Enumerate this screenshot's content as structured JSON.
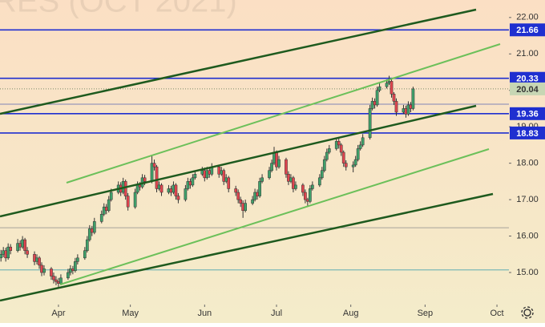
{
  "chart_data": {
    "type": "candlestick",
    "title": "RES (OCT 2021)",
    "xlim": [
      -24.4,
      188.0
    ],
    "xticks": [
      {
        "value": 0,
        "label": "Apr"
      },
      {
        "value": 30,
        "label": "May"
      },
      {
        "value": 61,
        "label": "Jun"
      },
      {
        "value": 91,
        "label": "Jul"
      },
      {
        "value": 122,
        "label": "Aug"
      },
      {
        "value": 153,
        "label": "Sep"
      },
      {
        "value": 183,
        "label": "Oct"
      }
    ],
    "ylim": [
      14.12,
      22.48
    ],
    "yticks": [
      {
        "value": 15,
        "label": "15.00"
      },
      {
        "value": 16,
        "label": "16.00"
      },
      {
        "value": 17,
        "label": "17.00"
      },
      {
        "value": 18,
        "label": "18.00"
      },
      {
        "value": 19,
        "label": "19.00"
      },
      {
        "value": 20,
        "label": "20.00"
      },
      {
        "value": 21,
        "label": "21.00"
      },
      {
        "value": 22,
        "label": "22.00"
      }
    ],
    "levels": [
      21.66,
      20.33,
      19.36,
      18.83
    ],
    "level_color": "#1f2fd0",
    "last_price": 20.04,
    "last_price_color": "#c7d6b4",
    "guide_lines": [
      {
        "value": 19.62,
        "color": "#5866b0"
      },
      {
        "value": 16.23,
        "color": "#8c8c8c"
      },
      {
        "value": 15.07,
        "color": "#4aa3b0"
      }
    ],
    "up_color": "#3fa06a",
    "down_color": "#e0454f",
    "series": [
      {
        "x": [
          -24,
          -23,
          -22,
          -21,
          -20,
          -17,
          -16,
          -15,
          -14,
          -13,
          -10,
          -9,
          -8,
          -7,
          -6,
          -3,
          -2,
          -1,
          0,
          1,
          4,
          5,
          6,
          7,
          8,
          11,
          12,
          13,
          14,
          15,
          18,
          19,
          20,
          21,
          22,
          25,
          26,
          27,
          28,
          29,
          32,
          33,
          34,
          35,
          36,
          39,
          40,
          41,
          42,
          43,
          46,
          47,
          48,
          49,
          50,
          53,
          54,
          55,
          56,
          57,
          60,
          61,
          62,
          63,
          64,
          67,
          68,
          69,
          70,
          71,
          74,
          75,
          76,
          77,
          78,
          81,
          82,
          83,
          84,
          85,
          88,
          89,
          90,
          91,
          92,
          95,
          96,
          97,
          98,
          99,
          102,
          103,
          104,
          105,
          106,
          109,
          110,
          111,
          112,
          113,
          116,
          117,
          118,
          119,
          120,
          123,
          124,
          125,
          126,
          127,
          130,
          131,
          132,
          133,
          134,
          137,
          138,
          139,
          140,
          141,
          144,
          145,
          146,
          147,
          148
        ],
        "ohlc": [
          [
            15.4,
            15.62,
            15.3,
            15.5
          ],
          [
            15.5,
            15.7,
            15.42,
            15.6
          ],
          [
            15.6,
            15.68,
            15.3,
            15.4
          ],
          [
            15.4,
            15.8,
            15.35,
            15.7
          ],
          [
            15.7,
            15.78,
            15.5,
            15.6
          ],
          [
            15.6,
            15.92,
            15.55,
            15.8
          ],
          [
            15.8,
            15.88,
            15.6,
            15.7
          ],
          [
            15.7,
            16.0,
            15.65,
            15.9
          ],
          [
            15.9,
            15.95,
            15.5,
            15.6
          ],
          [
            15.6,
            15.7,
            15.4,
            15.5
          ],
          [
            15.5,
            15.58,
            15.2,
            15.3
          ],
          [
            15.3,
            15.5,
            15.22,
            15.4
          ],
          [
            15.4,
            15.45,
            15.1,
            15.2
          ],
          [
            15.2,
            15.28,
            14.9,
            15.0
          ],
          [
            15.0,
            15.2,
            14.92,
            15.1
          ],
          [
            15.1,
            15.15,
            14.8,
            14.9
          ],
          [
            14.9,
            15.0,
            14.7,
            14.8
          ],
          [
            14.8,
            14.9,
            14.65,
            14.75
          ],
          [
            14.75,
            14.85,
            14.6,
            14.7
          ],
          [
            14.7,
            14.95,
            14.65,
            14.85
          ],
          [
            14.85,
            15.1,
            14.8,
            15.0
          ],
          [
            15.0,
            15.2,
            14.92,
            15.1
          ],
          [
            15.1,
            15.18,
            14.95,
            15.05
          ],
          [
            15.05,
            15.4,
            15.0,
            15.3
          ],
          [
            15.3,
            15.5,
            15.22,
            15.4
          ],
          [
            15.4,
            15.7,
            15.35,
            15.6
          ],
          [
            15.6,
            16.0,
            15.55,
            15.9
          ],
          [
            15.9,
            16.3,
            15.85,
            16.2
          ],
          [
            16.2,
            16.28,
            16.0,
            16.1
          ],
          [
            16.1,
            16.5,
            16.05,
            16.4
          ],
          [
            16.4,
            16.7,
            16.35,
            16.6
          ],
          [
            16.6,
            16.9,
            16.55,
            16.8
          ],
          [
            16.8,
            16.88,
            16.6,
            16.7
          ],
          [
            16.7,
            17.1,
            16.65,
            17.0
          ],
          [
            17.0,
            17.3,
            16.95,
            17.2
          ],
          [
            17.2,
            17.5,
            17.15,
            17.4
          ],
          [
            17.4,
            17.48,
            17.1,
            17.2
          ],
          [
            17.2,
            17.6,
            17.15,
            17.5
          ],
          [
            17.5,
            17.55,
            17.0,
            17.1
          ],
          [
            17.1,
            17.18,
            16.7,
            16.8
          ],
          [
            16.8,
            17.3,
            16.75,
            17.2
          ],
          [
            17.2,
            17.5,
            17.15,
            17.4
          ],
          [
            17.4,
            17.48,
            17.25,
            17.35
          ],
          [
            17.35,
            17.7,
            17.3,
            17.6
          ],
          [
            17.6,
            17.68,
            17.4,
            17.5
          ],
          [
            17.5,
            18.2,
            17.45,
            18.0
          ],
          [
            18.0,
            18.1,
            17.8,
            17.9
          ],
          [
            17.9,
            17.95,
            17.2,
            17.3
          ],
          [
            17.3,
            17.5,
            17.25,
            17.4
          ],
          [
            17.4,
            17.45,
            17.1,
            17.2
          ],
          [
            17.2,
            17.4,
            17.15,
            17.3
          ],
          [
            17.3,
            17.38,
            17.1,
            17.2
          ],
          [
            17.2,
            17.5,
            17.15,
            17.4
          ],
          [
            17.4,
            17.45,
            17.0,
            17.1
          ],
          [
            17.1,
            17.18,
            16.9,
            17.0
          ],
          [
            17.0,
            17.4,
            16.95,
            17.3
          ],
          [
            17.3,
            17.6,
            17.25,
            17.5
          ],
          [
            17.5,
            17.58,
            17.3,
            17.4
          ],
          [
            17.4,
            17.7,
            17.35,
            17.6
          ],
          [
            17.6,
            17.8,
            17.55,
            17.7
          ],
          [
            17.7,
            17.9,
            17.65,
            17.8
          ],
          [
            17.8,
            17.88,
            17.5,
            17.6
          ],
          [
            17.6,
            17.9,
            17.55,
            17.8
          ],
          [
            17.8,
            17.88,
            17.6,
            17.7
          ],
          [
            17.7,
            18.0,
            17.65,
            17.9
          ],
          [
            17.9,
            17.95,
            17.6,
            17.7
          ],
          [
            17.7,
            17.9,
            17.65,
            17.8
          ],
          [
            17.8,
            17.85,
            17.4,
            17.5
          ],
          [
            17.5,
            17.7,
            17.45,
            17.6
          ],
          [
            17.6,
            17.65,
            17.2,
            17.3
          ],
          [
            17.3,
            17.38,
            17.1,
            17.2
          ],
          [
            17.2,
            17.28,
            16.9,
            17.0
          ],
          [
            17.0,
            17.08,
            16.8,
            16.9
          ],
          [
            16.9,
            16.98,
            16.5,
            16.7
          ],
          [
            16.7,
            17.0,
            16.65,
            16.9
          ],
          [
            16.9,
            17.1,
            16.85,
            17.0
          ],
          [
            17.0,
            17.3,
            16.95,
            17.2
          ],
          [
            17.2,
            17.28,
            17.0,
            17.1
          ],
          [
            17.1,
            17.6,
            17.05,
            17.5
          ],
          [
            17.5,
            17.7,
            17.45,
            17.6
          ],
          [
            17.6,
            17.9,
            17.55,
            17.8
          ],
          [
            17.8,
            18.1,
            17.75,
            18.0
          ],
          [
            18.0,
            18.45,
            17.95,
            18.3
          ],
          [
            18.3,
            18.35,
            17.8,
            17.9
          ],
          [
            17.9,
            18.2,
            17.85,
            18.1
          ],
          [
            18.1,
            18.15,
            17.6,
            17.7
          ],
          [
            17.7,
            17.78,
            17.4,
            17.5
          ],
          [
            17.5,
            17.7,
            17.45,
            17.6
          ],
          [
            17.6,
            17.65,
            17.2,
            17.3
          ],
          [
            17.3,
            17.5,
            17.25,
            17.4
          ],
          [
            17.4,
            17.45,
            17.1,
            17.2
          ],
          [
            17.2,
            17.28,
            16.9,
            17.0
          ],
          [
            17.0,
            17.05,
            16.8,
            16.95
          ],
          [
            16.95,
            17.4,
            16.9,
            17.3
          ],
          [
            17.3,
            17.5,
            17.25,
            17.4
          ],
          [
            17.4,
            17.7,
            17.35,
            17.6
          ],
          [
            17.6,
            17.9,
            17.55,
            17.8
          ],
          [
            17.8,
            18.2,
            17.75,
            18.1
          ],
          [
            18.1,
            18.4,
            18.05,
            18.3
          ],
          [
            18.3,
            18.5,
            18.25,
            18.4
          ],
          [
            18.4,
            18.7,
            18.35,
            18.6
          ],
          [
            18.6,
            18.68,
            18.4,
            18.5
          ],
          [
            18.5,
            18.55,
            18.2,
            18.3
          ],
          [
            18.3,
            18.35,
            17.9,
            18.0
          ],
          [
            18.0,
            18.08,
            17.8,
            17.9
          ],
          [
            17.9,
            18.05,
            17.75,
            17.95
          ],
          [
            17.95,
            18.2,
            17.9,
            18.1
          ],
          [
            18.1,
            18.5,
            18.05,
            18.4
          ],
          [
            18.4,
            18.6,
            18.35,
            18.5
          ],
          [
            18.5,
            18.8,
            18.45,
            18.7
          ],
          [
            18.7,
            19.6,
            18.65,
            19.5
          ],
          [
            19.5,
            19.8,
            19.45,
            19.7
          ],
          [
            19.7,
            19.78,
            19.5,
            19.6
          ],
          [
            19.6,
            20.1,
            19.55,
            20.0
          ],
          [
            20.0,
            20.2,
            19.95,
            20.1
          ],
          [
            20.1,
            20.3,
            20.05,
            20.2
          ],
          [
            20.2,
            20.4,
            20.15,
            20.25
          ],
          [
            20.25,
            20.3,
            19.8,
            19.9
          ],
          [
            19.9,
            19.95,
            19.6,
            19.7
          ],
          [
            19.7,
            19.78,
            19.3,
            19.4
          ],
          [
            19.4,
            19.6,
            19.35,
            19.5
          ],
          [
            19.5,
            19.58,
            19.25,
            19.35
          ],
          [
            19.35,
            19.7,
            19.3,
            19.6
          ],
          [
            19.6,
            19.68,
            19.4,
            19.5
          ],
          [
            19.5,
            20.1,
            19.45,
            20.04
          ]
        ]
      }
    ]
  }
}
